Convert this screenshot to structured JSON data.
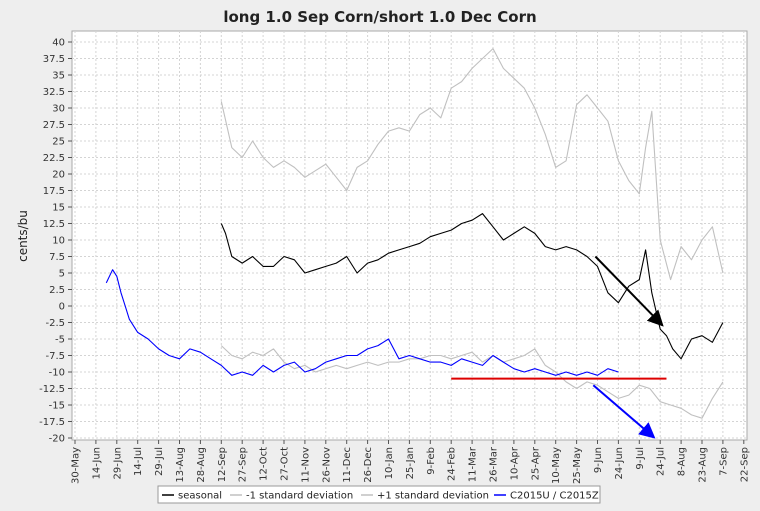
{
  "chart_data": {
    "type": "line",
    "title": "long 1.0 Sep Corn/short 1.0 Dec Corn",
    "xlabel": "",
    "ylabel": "cents/bu",
    "ylim": [
      -20,
      42.5
    ],
    "y_ticks": [
      -20,
      -17.5,
      -15,
      -12.5,
      -10,
      -7.5,
      -5,
      -2.5,
      0,
      2.5,
      5,
      7.5,
      10,
      12.5,
      15,
      17.5,
      20,
      22.5,
      25,
      27.5,
      30,
      32.5,
      35,
      37.5,
      40
    ],
    "y_tick_labels": [
      "-20",
      "-17.5",
      "-15",
      "-12.5",
      "-10",
      "-7.5",
      "-5",
      "-2.5",
      "0",
      "2.5",
      "5",
      "7.5",
      "10",
      "12.5",
      "15",
      "17.5",
      "20",
      "22.5",
      "25",
      "27.5",
      "30",
      "32.5",
      "35",
      "37.5",
      "40"
    ],
    "x_tick_labels": [
      "30-May",
      "14-Jun",
      "29-Jun",
      "14-Jul",
      "29-Jul",
      "13-Aug",
      "28-Aug",
      "12-Sep",
      "27-Sep",
      "12-Oct",
      "27-Oct",
      "11-Nov",
      "26-Nov",
      "11-Dec",
      "26-Dec",
      "10-Jan",
      "25-Jan",
      "9-Feb",
      "24-Feb",
      "11-Mar",
      "26-Mar",
      "10-Apr",
      "25-Apr",
      "10-May",
      "25-May",
      "9-Jun",
      "24-Jun",
      "9-Jul",
      "24-Jul",
      "8-Aug",
      "23-Aug",
      "7-Sep",
      "22-Sep"
    ],
    "grid": true,
    "legend_position": "bottom",
    "series": [
      {
        "name": "seasonal",
        "color": "#000000",
        "x": [
          7,
          7.2,
          7.5,
          8,
          8.5,
          9,
          9.5,
          10,
          10.5,
          11,
          11.5,
          12,
          12.5,
          13,
          13.5,
          14,
          14.5,
          15,
          15.5,
          16,
          16.5,
          17,
          17.5,
          18,
          18.5,
          19,
          19.5,
          20,
          20.5,
          21,
          21.5,
          22,
          22.5,
          23,
          23.5,
          24,
          24.5,
          25,
          25.5,
          26,
          26.5,
          27,
          27.3,
          27.6,
          28,
          28.3,
          28.6,
          29,
          29.5,
          30,
          30.5,
          31
        ],
        "y": [
          12.5,
          11,
          7.5,
          6.5,
          7.5,
          6,
          6,
          7.5,
          7,
          5,
          5.5,
          6,
          6.5,
          7.5,
          5,
          6.5,
          7,
          8,
          8.5,
          9,
          9.5,
          10.5,
          11,
          11.5,
          12.5,
          13,
          14,
          12,
          10,
          11,
          12,
          11,
          9,
          8.5,
          9,
          8.5,
          7.5,
          6,
          2,
          0.5,
          3,
          4,
          8.5,
          2,
          -3.5,
          -4.5,
          -6.5,
          -8,
          -5,
          -4.5,
          -5.5,
          -2.5
        ]
      },
      {
        "name": "-1 standard deviation",
        "color": "#c0c0c0",
        "x": [
          7,
          7.5,
          8,
          8.5,
          9,
          9.5,
          10,
          10.5,
          11,
          11.5,
          12,
          12.5,
          13,
          13.5,
          14,
          14.5,
          15,
          15.5,
          16,
          16.5,
          17,
          17.5,
          18,
          18.5,
          19,
          19.5,
          20,
          20.5,
          21,
          21.5,
          22,
          22.5,
          23,
          23.5,
          24,
          24.5,
          25,
          25.5,
          26,
          26.5,
          27,
          27.5,
          28,
          28.5,
          29,
          29.5,
          30,
          30.5,
          31
        ],
        "y": [
          -6,
          -7.5,
          -8,
          -7,
          -7.5,
          -6.5,
          -8.5,
          -9.5,
          -9,
          -10,
          -9.5,
          -9,
          -9.5,
          -9,
          -8.5,
          -9,
          -8.5,
          -8.5,
          -8,
          -8,
          -7.5,
          -7.5,
          -8,
          -7.5,
          -7,
          -8.5,
          -7.5,
          -8.5,
          -8,
          -7.5,
          -6.5,
          -9,
          -10,
          -11.5,
          -12.5,
          -11.5,
          -12,
          -13,
          -14,
          -13.5,
          -12,
          -12.5,
          -14.5,
          -15,
          -15.5,
          -16.5,
          -17,
          -14,
          -11.5
        ]
      },
      {
        "name": "+1 standard deviation",
        "color": "#c0c0c0",
        "x": [
          7,
          7.5,
          8,
          8.5,
          9,
          9.5,
          10,
          10.5,
          11,
          11.5,
          12,
          12.5,
          13,
          13.5,
          14,
          14.5,
          15,
          15.5,
          16,
          16.5,
          17,
          17.5,
          18,
          18.5,
          19,
          19.5,
          20,
          20.5,
          21,
          21.5,
          22,
          22.5,
          23,
          23.5,
          24,
          24.5,
          25,
          25.5,
          26,
          26.5,
          27,
          27.3,
          27.6,
          28,
          28.5,
          29,
          29.5,
          30,
          30.5,
          31
        ],
        "y": [
          31,
          24,
          22.5,
          25,
          22.5,
          21,
          22,
          21,
          19.5,
          20.5,
          21.5,
          19.5,
          17.5,
          21,
          22,
          24.5,
          26.5,
          27,
          26.5,
          29,
          30,
          28.5,
          33,
          34,
          36,
          37.5,
          39,
          36,
          34.5,
          33,
          30,
          26,
          21,
          22,
          30.5,
          32,
          30,
          28,
          22,
          19,
          17,
          24,
          29.5,
          10,
          4,
          9,
          7,
          10,
          12,
          5
        ]
      },
      {
        "name": "C2015U / C2015Z",
        "color": "#0000ff",
        "x": [
          1.5,
          1.8,
          2,
          2.2,
          2.4,
          2.6,
          3,
          3.5,
          4,
          4.5,
          5,
          5.5,
          6,
          6.5,
          7,
          7.5,
          8,
          8.5,
          9,
          9.5,
          10,
          10.5,
          11,
          11.5,
          12,
          12.5,
          13,
          13.5,
          14,
          14.5,
          15,
          15.5,
          16,
          16.5,
          17,
          17.5,
          18,
          18.5,
          19,
          19.5,
          20,
          20.5,
          21,
          21.5,
          22,
          22.5,
          23,
          23.5,
          24,
          24.5,
          25,
          25.5,
          26
        ],
        "y": [
          3.5,
          5.5,
          4.5,
          2,
          0,
          -2,
          -4,
          -5,
          -6.5,
          -7.5,
          -8,
          -6.5,
          -7,
          -8,
          -9,
          -10.5,
          -10,
          -10.5,
          -9,
          -10,
          -9,
          -8.5,
          -10,
          -9.5,
          -8.5,
          -8,
          -7.5,
          -7.5,
          -6.5,
          -6,
          -5,
          -8,
          -7.5,
          -8,
          -8.5,
          -8.5,
          -9,
          -8,
          -8.5,
          -9,
          -7.5,
          -8.5,
          -9.5,
          -10,
          -9.5,
          -10,
          -10.5,
          -10,
          -10.5,
          -10,
          -10.5,
          -9.5,
          -10
        ]
      }
    ],
    "annotations": [
      {
        "type": "hline",
        "color": "#dd0000",
        "x_start": 18,
        "x_end": 28.3,
        "y": -11
      },
      {
        "type": "arrow",
        "color": "#000000",
        "x_start": 24.9,
        "y_start": 7.5,
        "x_end": 28.1,
        "y_end": -2.9
      },
      {
        "type": "arrow",
        "color": "#0000ff",
        "x_start": 24.8,
        "y_start": -12,
        "x_end": 27.7,
        "y_end": -19.9
      }
    ]
  }
}
